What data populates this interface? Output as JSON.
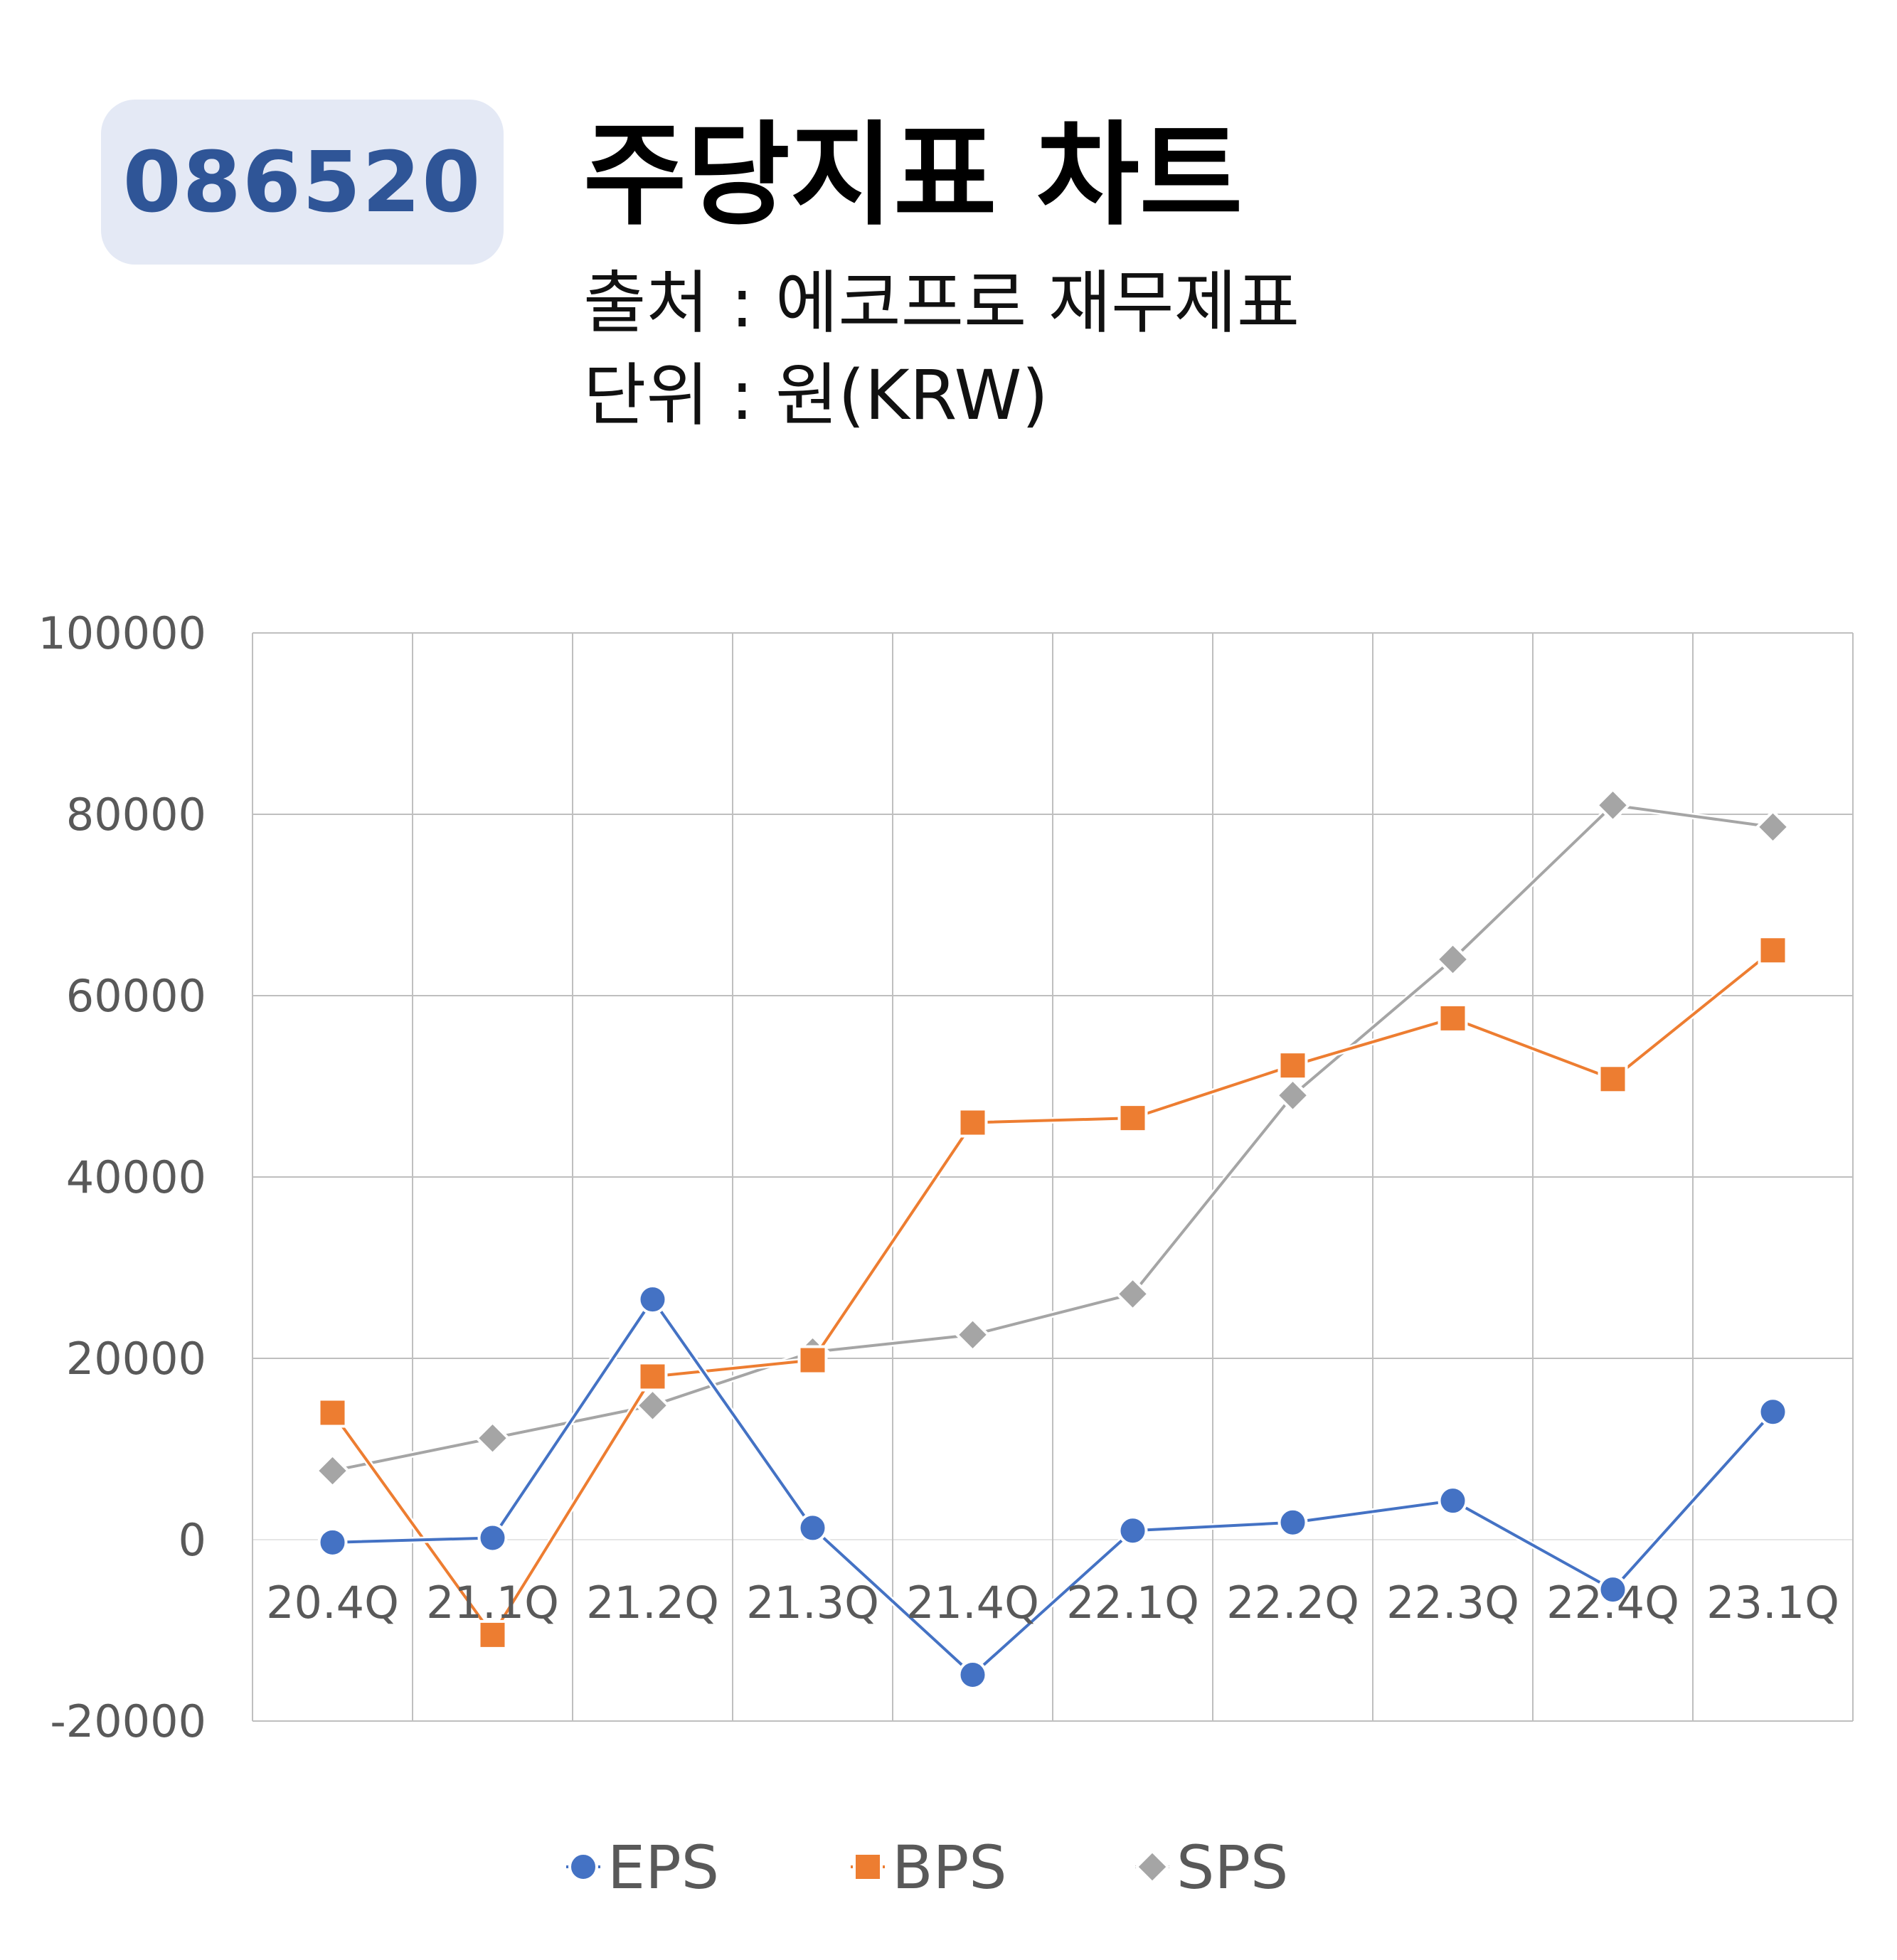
{
  "header": {
    "ticker": "086520",
    "title": "주당지표 차트",
    "source_line": "출처 : 에코프로 재무제표",
    "unit_line": "단위 : 원(KRW)"
  },
  "colors": {
    "badge_bg": "#e4e9f5",
    "badge_text": "#2f5597",
    "EPS": "#4472c4",
    "BPS": "#ed7d31",
    "SPS": "#a5a5a5",
    "grid": "#bfbfbf"
  },
  "chart_data": {
    "type": "line",
    "categories": [
      "20.4Q",
      "21.1Q",
      "21.2Q",
      "21.3Q",
      "21.4Q",
      "22.1Q",
      "22.2Q",
      "22.3Q",
      "22.4Q",
      "23.1Q"
    ],
    "series": [
      {
        "name": "EPS",
        "marker": "circle",
        "values": [
          -300,
          200,
          26500,
          1300,
          -14900,
          1000,
          1900,
          4300,
          -5500,
          14100
        ]
      },
      {
        "name": "BPS",
        "marker": "square",
        "values": [
          14000,
          -10500,
          18000,
          19800,
          46000,
          46500,
          52300,
          57500,
          50800,
          65000
        ]
      },
      {
        "name": "SPS",
        "marker": "diamond",
        "values": [
          7600,
          11200,
          14800,
          20700,
          22600,
          27100,
          49000,
          64000,
          81000,
          78600
        ]
      }
    ],
    "y_ticks": [
      100000,
      80000,
      60000,
      40000,
      20000,
      0,
      -20000
    ],
    "ylim": [
      -20000,
      100000
    ],
    "grid": true,
    "legend": "bottom"
  }
}
